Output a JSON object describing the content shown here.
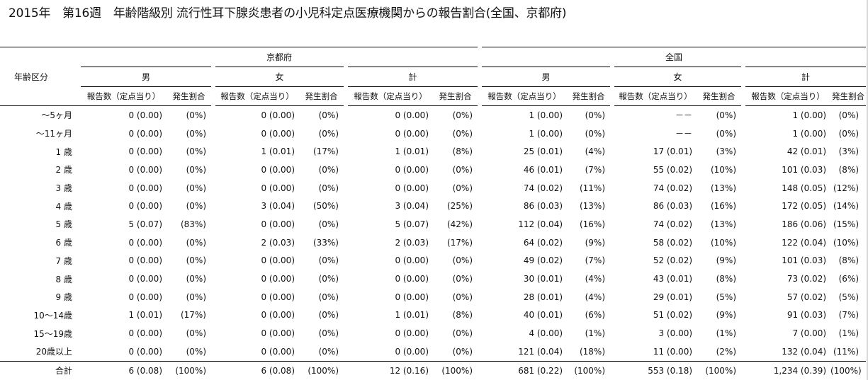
{
  "title": "2015年　第16週　年齢階級別 流行性耳下腺炎患者の小児科定点医療機関からの報告割合(全国、京都府)",
  "header": {
    "age_group": "年齢区分",
    "regions": [
      "京都府",
      "全国"
    ],
    "sexes": [
      "男",
      "女",
      "計"
    ],
    "col_count": "報告数（定点当り）",
    "col_rate": "発生割合"
  },
  "rows": [
    {
      "age": "～5ヶ月",
      "cells": [
        [
          "0 (0.00)",
          "(0%)"
        ],
        [
          "0 (0.00)",
          "(0%)"
        ],
        [
          "0 (0.00)",
          "(0%)"
        ],
        [
          "1 (0.00)",
          "(0%)"
        ],
        [
          "－－",
          "(0%)"
        ],
        [
          "1 (0.00)",
          "(0%)"
        ]
      ]
    },
    {
      "age": "～11ヶ月",
      "cells": [
        [
          "0 (0.00)",
          "(0%)"
        ],
        [
          "0 (0.00)",
          "(0%)"
        ],
        [
          "0 (0.00)",
          "(0%)"
        ],
        [
          "1 (0.00)",
          "(0%)"
        ],
        [
          "－－",
          "(0%)"
        ],
        [
          "1 (0.00)",
          "(0%)"
        ]
      ]
    },
    {
      "age": "1 歳",
      "cells": [
        [
          "0 (0.00)",
          "(0%)"
        ],
        [
          "1 (0.01)",
          "(17%)"
        ],
        [
          "1 (0.01)",
          "(8%)"
        ],
        [
          "25 (0.01)",
          "(4%)"
        ],
        [
          "17 (0.01)",
          "(3%)"
        ],
        [
          "42 (0.01)",
          "(3%)"
        ]
      ]
    },
    {
      "age": "2 歳",
      "cells": [
        [
          "0 (0.00)",
          "(0%)"
        ],
        [
          "0 (0.00)",
          "(0%)"
        ],
        [
          "0 (0.00)",
          "(0%)"
        ],
        [
          "46 (0.01)",
          "(7%)"
        ],
        [
          "55 (0.02)",
          "(10%)"
        ],
        [
          "101 (0.03)",
          "(8%)"
        ]
      ]
    },
    {
      "age": "3 歳",
      "cells": [
        [
          "0 (0.00)",
          "(0%)"
        ],
        [
          "0 (0.00)",
          "(0%)"
        ],
        [
          "0 (0.00)",
          "(0%)"
        ],
        [
          "74 (0.02)",
          "(11%)"
        ],
        [
          "74 (0.02)",
          "(13%)"
        ],
        [
          "148 (0.05)",
          "(12%)"
        ]
      ]
    },
    {
      "age": "4 歳",
      "cells": [
        [
          "0 (0.00)",
          "(0%)"
        ],
        [
          "3 (0.04)",
          "(50%)"
        ],
        [
          "3 (0.04)",
          "(25%)"
        ],
        [
          "86 (0.03)",
          "(13%)"
        ],
        [
          "86 (0.03)",
          "(16%)"
        ],
        [
          "172 (0.05)",
          "(14%)"
        ]
      ]
    },
    {
      "age": "5 歳",
      "cells": [
        [
          "5 (0.07)",
          "(83%)"
        ],
        [
          "0 (0.00)",
          "(0%)"
        ],
        [
          "5 (0.07)",
          "(42%)"
        ],
        [
          "112 (0.04)",
          "(16%)"
        ],
        [
          "74 (0.02)",
          "(13%)"
        ],
        [
          "186 (0.06)",
          "(15%)"
        ]
      ]
    },
    {
      "age": "6 歳",
      "cells": [
        [
          "0 (0.00)",
          "(0%)"
        ],
        [
          "2 (0.03)",
          "(33%)"
        ],
        [
          "2 (0.03)",
          "(17%)"
        ],
        [
          "64 (0.02)",
          "(9%)"
        ],
        [
          "58 (0.02)",
          "(10%)"
        ],
        [
          "122 (0.04)",
          "(10%)"
        ]
      ]
    },
    {
      "age": "7 歳",
      "cells": [
        [
          "0 (0.00)",
          "(0%)"
        ],
        [
          "0 (0.00)",
          "(0%)"
        ],
        [
          "0 (0.00)",
          "(0%)"
        ],
        [
          "49 (0.02)",
          "(7%)"
        ],
        [
          "52 (0.02)",
          "(9%)"
        ],
        [
          "101 (0.03)",
          "(8%)"
        ]
      ]
    },
    {
      "age": "8 歳",
      "cells": [
        [
          "0 (0.00)",
          "(0%)"
        ],
        [
          "0 (0.00)",
          "(0%)"
        ],
        [
          "0 (0.00)",
          "(0%)"
        ],
        [
          "30 (0.01)",
          "(4%)"
        ],
        [
          "43 (0.01)",
          "(8%)"
        ],
        [
          "73 (0.02)",
          "(6%)"
        ]
      ]
    },
    {
      "age": "9 歳",
      "cells": [
        [
          "0 (0.00)",
          "(0%)"
        ],
        [
          "0 (0.00)",
          "(0%)"
        ],
        [
          "0 (0.00)",
          "(0%)"
        ],
        [
          "28 (0.01)",
          "(4%)"
        ],
        [
          "29 (0.01)",
          "(5%)"
        ],
        [
          "57 (0.02)",
          "(5%)"
        ]
      ]
    },
    {
      "age": "10～14歳",
      "cells": [
        [
          "1 (0.01)",
          "(17%)"
        ],
        [
          "0 (0.00)",
          "(0%)"
        ],
        [
          "1 (0.01)",
          "(8%)"
        ],
        [
          "40 (0.01)",
          "(6%)"
        ],
        [
          "51 (0.02)",
          "(9%)"
        ],
        [
          "91 (0.03)",
          "(7%)"
        ]
      ]
    },
    {
      "age": "15～19歳",
      "cells": [
        [
          "0 (0.00)",
          "(0%)"
        ],
        [
          "0 (0.00)",
          "(0%)"
        ],
        [
          "0 (0.00)",
          "(0%)"
        ],
        [
          "4 (0.00)",
          "(1%)"
        ],
        [
          "3 (0.00)",
          "(1%)"
        ],
        [
          "7 (0.00)",
          "(1%)"
        ]
      ]
    },
    {
      "age": "20歳以上",
      "cells": [
        [
          "0 (0.00)",
          "(0%)"
        ],
        [
          "0 (0.00)",
          "(0%)"
        ],
        [
          "0 (0.00)",
          "(0%)"
        ],
        [
          "121 (0.04)",
          "(18%)"
        ],
        [
          "11 (0.00)",
          "(2%)"
        ],
        [
          "132 (0.04)",
          "(11%)"
        ]
      ]
    }
  ],
  "total": {
    "age": "合計",
    "cells": [
      [
        "6 (0.08)",
        "(100%)"
      ],
      [
        "6 (0.08)",
        "(100%)"
      ],
      [
        "12 (0.16)",
        "(100%)"
      ],
      [
        "681 (0.22)",
        "(100%)"
      ],
      [
        "553 (0.18)",
        "(100%)"
      ],
      [
        "1,234 (0.39)",
        "(100%)"
      ]
    ]
  }
}
